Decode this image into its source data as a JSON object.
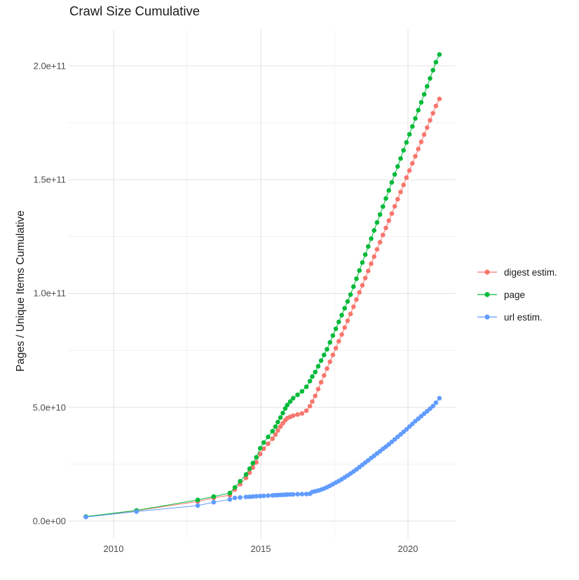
{
  "chart": {
    "title": "Crawl Size Cumulative",
    "y_axis": {
      "title": "Pages / Unique Items Cumulative",
      "ticks": [
        {
          "value": 0,
          "label": "0.0e+00"
        },
        {
          "value": 50,
          "label": "5.0e+10"
        },
        {
          "value": 100,
          "label": "1.0e+11"
        },
        {
          "value": 150,
          "label": "1.5e+11"
        },
        {
          "value": 200,
          "label": "2.0e+11"
        }
      ],
      "minor_ticks": [
        25,
        75,
        125,
        175
      ],
      "domain_billions": [
        -7.7,
        216.0
      ]
    },
    "x_axis": {
      "ticks": [
        {
          "value": 2010,
          "label": "2010"
        },
        {
          "value": 2015,
          "label": "2015"
        },
        {
          "value": 2020,
          "label": "2020"
        }
      ],
      "minor_ticks": [
        2012.5,
        2017.5
      ],
      "domain": [
        2008.476,
        2021.619
      ]
    },
    "legend": {
      "items": [
        {
          "label": "digest estim.",
          "color": "#F8766D"
        },
        {
          "label": "page",
          "color": "#00BA38"
        },
        {
          "label": "url estim.",
          "color": "#619CFF"
        }
      ]
    },
    "style": {
      "grid_major_color": "#e3e3e3",
      "grid_minor_color": "#f0f0f0",
      "tick_text_color": "#4d4d4d",
      "text_color": "#1a1a1a",
      "background": "#ffffff"
    }
  },
  "chart_data": {
    "type": "scatter",
    "note": "points joined by thin lines; values in billions of items (1e9); y axis shown in scientific notation",
    "title": "Crawl Size Cumulative",
    "xlabel": "",
    "ylabel": "Pages / Unique Items Cumulative",
    "xlim": [
      2008.476,
      2021.619
    ],
    "ylim_billions": [
      -7.7,
      216.0
    ],
    "legend_position": "right",
    "grid": true,
    "x": [
      2009.06,
      2010.78,
      2012.86,
      2013.4,
      2013.95,
      2014.12,
      2014.3,
      2014.5,
      2014.62,
      2014.73,
      2014.85,
      2014.98,
      2015.1,
      2015.25,
      2015.4,
      2015.5,
      2015.58,
      2015.67,
      2015.75,
      2015.83,
      2015.9,
      2016.0,
      2016.1,
      2016.25,
      2016.4,
      2016.55,
      2016.67,
      2016.75,
      2016.85,
      2016.95,
      2017.05,
      2017.15,
      2017.25,
      2017.35,
      2017.45,
      2017.55,
      2017.65,
      2017.75,
      2017.85,
      2017.95,
      2018.05,
      2018.15,
      2018.25,
      2018.35,
      2018.45,
      2018.55,
      2018.65,
      2018.75,
      2018.85,
      2018.95,
      2019.05,
      2019.15,
      2019.25,
      2019.35,
      2019.45,
      2019.55,
      2019.65,
      2019.75,
      2019.85,
      2019.95,
      2020.05,
      2020.15,
      2020.25,
      2020.35,
      2020.45,
      2020.55,
      2020.65,
      2020.75,
      2020.85,
      2020.95,
      2021.07
    ],
    "series": [
      {
        "name": "digest estim.",
        "color": "#F8766D",
        "values": [
          1.9,
          4.6,
          8.6,
          10.2,
          11.4,
          13.9,
          16.2,
          19.0,
          21.3,
          23.5,
          25.8,
          29.5,
          31.8,
          34.0,
          36.2,
          38.0,
          39.8,
          41.5,
          43.0,
          44.3,
          45.2,
          45.8,
          46.3,
          46.8,
          47.3,
          48.5,
          50.5,
          52.5,
          55.0,
          58.0,
          61.0,
          64.0,
          67.0,
          70.0,
          73.0,
          76.0,
          79.0,
          82.0,
          85.0,
          88.0,
          91.0,
          94.2,
          97.3,
          100.5,
          103.6,
          106.8,
          109.9,
          113.1,
          116.2,
          119.4,
          122.5,
          125.7,
          128.8,
          132.0,
          135.1,
          138.3,
          141.4,
          144.6,
          147.7,
          150.9,
          154.0,
          157.2,
          160.3,
          163.5,
          166.6,
          169.8,
          172.9,
          176.1,
          179.2,
          182.4,
          185.5
        ]
      },
      {
        "name": "page",
        "color": "#00BA38",
        "values": [
          2.0,
          4.7,
          9.3,
          10.8,
          12.3,
          14.8,
          17.5,
          20.5,
          23.0,
          25.5,
          28.0,
          32.0,
          34.5,
          37.0,
          39.5,
          41.5,
          43.5,
          45.5,
          47.5,
          49.5,
          51.0,
          52.5,
          54.0,
          55.5,
          57.0,
          59.0,
          61.5,
          63.5,
          65.5,
          68.0,
          70.5,
          73.0,
          75.5,
          78.5,
          81.5,
          84.5,
          87.5,
          90.5,
          93.5,
          96.5,
          99.5,
          103.0,
          106.5,
          110.1,
          113.6,
          117.1,
          120.6,
          124.1,
          127.7,
          131.2,
          134.7,
          138.2,
          141.7,
          145.3,
          148.8,
          152.3,
          155.8,
          159.3,
          162.9,
          166.4,
          169.9,
          173.4,
          176.9,
          180.5,
          184.0,
          187.5,
          191.0,
          194.5,
          198.1,
          201.6,
          205.0
        ]
      },
      {
        "name": "url estim.",
        "color": "#619CFF",
        "values": [
          1.8,
          4.2,
          6.8,
          8.3,
          9.5,
          10.2,
          10.4,
          10.6,
          10.7,
          10.8,
          10.9,
          11.0,
          11.1,
          11.2,
          11.3,
          11.4,
          11.45,
          11.5,
          11.55,
          11.6,
          11.65,
          11.7,
          11.75,
          11.8,
          11.85,
          11.9,
          12.0,
          12.8,
          13.1,
          13.4,
          13.8,
          14.3,
          14.9,
          15.5,
          16.2,
          16.9,
          17.6,
          18.4,
          19.2,
          20.0,
          20.9,
          21.8,
          22.7,
          23.7,
          24.7,
          25.7,
          26.7,
          27.7,
          28.7,
          29.7,
          30.7,
          31.7,
          32.7,
          33.7,
          34.8,
          35.9,
          37.0,
          38.1,
          39.2,
          40.3,
          41.5,
          42.7,
          43.9,
          45.0,
          46.1,
          47.2,
          48.3,
          49.4,
          50.5,
          52.0,
          54.0
        ]
      }
    ]
  }
}
